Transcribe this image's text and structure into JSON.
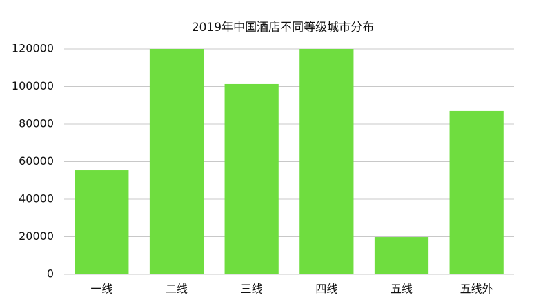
{
  "chart_data": {
    "type": "bar",
    "title": "2019年中国酒店不同等级城市分布",
    "categories": [
      "一线",
      "二线",
      "三线",
      "四线",
      "五线",
      "五线外"
    ],
    "values": [
      55400,
      120000,
      101300,
      120000,
      19800,
      87000
    ],
    "color": "#6fdd3f",
    "ylim": [
      0,
      120000
    ],
    "yticks": [
      0,
      20000,
      40000,
      60000,
      80000,
      100000,
      120000
    ],
    "grid": true
  }
}
